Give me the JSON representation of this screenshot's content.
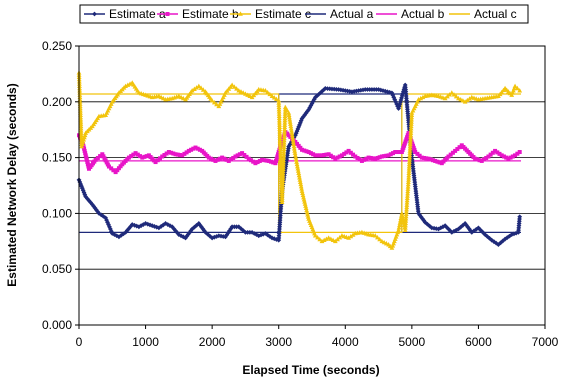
{
  "chart_data": {
    "type": "line",
    "xlabel": "Elapsed Time (seconds)",
    "ylabel": "Estimated Network Delay (seconds)",
    "xlim": [
      0,
      7000
    ],
    "ylim": [
      0,
      0.25
    ],
    "x_ticks": [
      "0",
      "1000",
      "2000",
      "3000",
      "4000",
      "5000",
      "6000",
      "7000"
    ],
    "y_ticks": [
      "0.000",
      "0.050",
      "0.100",
      "0.150",
      "0.200",
      "0.250"
    ],
    "grid": "horizontal",
    "legend_position": "top",
    "series": [
      {
        "name": "Estimate a",
        "kind": "estimate",
        "color": "#1f2a7a",
        "marker": "diamond",
        "points": [
          [
            0,
            0.13
          ],
          [
            100,
            0.115
          ],
          [
            200,
            0.108
          ],
          [
            300,
            0.1
          ],
          [
            400,
            0.096
          ],
          [
            500,
            0.082
          ],
          [
            600,
            0.079
          ],
          [
            700,
            0.083
          ],
          [
            800,
            0.09
          ],
          [
            900,
            0.088
          ],
          [
            1000,
            0.091
          ],
          [
            1100,
            0.089
          ],
          [
            1200,
            0.087
          ],
          [
            1300,
            0.091
          ],
          [
            1400,
            0.088
          ],
          [
            1500,
            0.081
          ],
          [
            1600,
            0.078
          ],
          [
            1700,
            0.086
          ],
          [
            1800,
            0.091
          ],
          [
            1900,
            0.083
          ],
          [
            2000,
            0.078
          ],
          [
            2100,
            0.08
          ],
          [
            2200,
            0.079
          ],
          [
            2300,
            0.088
          ],
          [
            2400,
            0.088
          ],
          [
            2500,
            0.083
          ],
          [
            2600,
            0.083
          ],
          [
            2700,
            0.08
          ],
          [
            2800,
            0.082
          ],
          [
            2900,
            0.078
          ],
          [
            3000,
            0.076
          ],
          [
            3050,
            0.12
          ],
          [
            3150,
            0.16
          ],
          [
            3250,
            0.17
          ],
          [
            3350,
            0.185
          ],
          [
            3450,
            0.193
          ],
          [
            3550,
            0.204
          ],
          [
            3700,
            0.212
          ],
          [
            3900,
            0.211
          ],
          [
            4100,
            0.209
          ],
          [
            4300,
            0.211
          ],
          [
            4500,
            0.211
          ],
          [
            4700,
            0.208
          ],
          [
            4800,
            0.194
          ],
          [
            4900,
            0.215
          ],
          [
            5000,
            0.15
          ],
          [
            5100,
            0.1
          ],
          [
            5200,
            0.092
          ],
          [
            5300,
            0.087
          ],
          [
            5400,
            0.086
          ],
          [
            5500,
            0.089
          ],
          [
            5600,
            0.083
          ],
          [
            5700,
            0.086
          ],
          [
            5800,
            0.091
          ],
          [
            5900,
            0.083
          ],
          [
            6000,
            0.087
          ],
          [
            6100,
            0.081
          ],
          [
            6200,
            0.076
          ],
          [
            6300,
            0.072
          ],
          [
            6400,
            0.077
          ],
          [
            6500,
            0.081
          ],
          [
            6600,
            0.083
          ],
          [
            6620,
            0.097
          ]
        ]
      },
      {
        "name": "Estimate b",
        "kind": "estimate",
        "color": "#e815c8",
        "marker": "square",
        "points": [
          [
            0,
            0.17
          ],
          [
            60,
            0.162
          ],
          [
            150,
            0.14
          ],
          [
            250,
            0.148
          ],
          [
            350,
            0.153
          ],
          [
            450,
            0.142
          ],
          [
            550,
            0.137
          ],
          [
            650,
            0.144
          ],
          [
            750,
            0.15
          ],
          [
            850,
            0.154
          ],
          [
            950,
            0.15
          ],
          [
            1050,
            0.152
          ],
          [
            1150,
            0.146
          ],
          [
            1250,
            0.151
          ],
          [
            1350,
            0.155
          ],
          [
            1450,
            0.153
          ],
          [
            1550,
            0.152
          ],
          [
            1650,
            0.156
          ],
          [
            1750,
            0.159
          ],
          [
            1850,
            0.156
          ],
          [
            1950,
            0.15
          ],
          [
            2050,
            0.147
          ],
          [
            2150,
            0.15
          ],
          [
            2250,
            0.147
          ],
          [
            2350,
            0.151
          ],
          [
            2450,
            0.154
          ],
          [
            2550,
            0.149
          ],
          [
            2650,
            0.145
          ],
          [
            2750,
            0.148
          ],
          [
            2850,
            0.147
          ],
          [
            2950,
            0.145
          ],
          [
            3050,
            0.165
          ],
          [
            3100,
            0.173
          ],
          [
            3150,
            0.17
          ],
          [
            3250,
            0.164
          ],
          [
            3350,
            0.157
          ],
          [
            3450,
            0.155
          ],
          [
            3550,
            0.152
          ],
          [
            3650,
            0.152
          ],
          [
            3750,
            0.153
          ],
          [
            3850,
            0.149
          ],
          [
            3950,
            0.152
          ],
          [
            4050,
            0.156
          ],
          [
            4150,
            0.151
          ],
          [
            4250,
            0.147
          ],
          [
            4350,
            0.15
          ],
          [
            4450,
            0.149
          ],
          [
            4550,
            0.151
          ],
          [
            4650,
            0.152
          ],
          [
            4750,
            0.155
          ],
          [
            4850,
            0.155
          ],
          [
            4950,
            0.172
          ],
          [
            5050,
            0.155
          ],
          [
            5150,
            0.15
          ],
          [
            5250,
            0.149
          ],
          [
            5350,
            0.147
          ],
          [
            5450,
            0.145
          ],
          [
            5550,
            0.151
          ],
          [
            5650,
            0.156
          ],
          [
            5750,
            0.161
          ],
          [
            5850,
            0.155
          ],
          [
            5950,
            0.149
          ],
          [
            6050,
            0.147
          ],
          [
            6150,
            0.151
          ],
          [
            6250,
            0.156
          ],
          [
            6350,
            0.152
          ],
          [
            6450,
            0.149
          ],
          [
            6550,
            0.152
          ],
          [
            6620,
            0.155
          ]
        ]
      },
      {
        "name": "Estimate c",
        "kind": "estimate",
        "color": "#f2c40c",
        "marker": "triangle",
        "points": [
          [
            0,
            0.226
          ],
          [
            40,
            0.16
          ],
          [
            100,
            0.172
          ],
          [
            200,
            0.178
          ],
          [
            300,
            0.187
          ],
          [
            400,
            0.188
          ],
          [
            500,
            0.2
          ],
          [
            600,
            0.208
          ],
          [
            700,
            0.214
          ],
          [
            800,
            0.217
          ],
          [
            900,
            0.208
          ],
          [
            1000,
            0.206
          ],
          [
            1100,
            0.204
          ],
          [
            1200,
            0.205
          ],
          [
            1300,
            0.202
          ],
          [
            1400,
            0.203
          ],
          [
            1500,
            0.205
          ],
          [
            1600,
            0.202
          ],
          [
            1700,
            0.21
          ],
          [
            1800,
            0.214
          ],
          [
            1900,
            0.209
          ],
          [
            2000,
            0.201
          ],
          [
            2100,
            0.196
          ],
          [
            2200,
            0.208
          ],
          [
            2300,
            0.215
          ],
          [
            2400,
            0.21
          ],
          [
            2500,
            0.207
          ],
          [
            2600,
            0.204
          ],
          [
            2700,
            0.211
          ],
          [
            2800,
            0.21
          ],
          [
            2900,
            0.205
          ],
          [
            3000,
            0.201
          ],
          [
            3050,
            0.11
          ],
          [
            3100,
            0.195
          ],
          [
            3150,
            0.19
          ],
          [
            3250,
            0.152
          ],
          [
            3350,
            0.12
          ],
          [
            3450,
            0.095
          ],
          [
            3550,
            0.08
          ],
          [
            3650,
            0.075
          ],
          [
            3750,
            0.078
          ],
          [
            3850,
            0.075
          ],
          [
            3950,
            0.08
          ],
          [
            4050,
            0.078
          ],
          [
            4150,
            0.082
          ],
          [
            4250,
            0.083
          ],
          [
            4350,
            0.081
          ],
          [
            4450,
            0.08
          ],
          [
            4550,
            0.075
          ],
          [
            4650,
            0.072
          ],
          [
            4700,
            0.069
          ],
          [
            4800,
            0.085
          ],
          [
            4850,
            0.1
          ],
          [
            4900,
            0.085
          ],
          [
            4950,
            0.13
          ],
          [
            5000,
            0.19
          ],
          [
            5100,
            0.202
          ],
          [
            5200,
            0.205
          ],
          [
            5300,
            0.206
          ],
          [
            5400,
            0.205
          ],
          [
            5500,
            0.203
          ],
          [
            5600,
            0.208
          ],
          [
            5700,
            0.203
          ],
          [
            5800,
            0.2
          ],
          [
            5900,
            0.204
          ],
          [
            6000,
            0.202
          ],
          [
            6100,
            0.203
          ],
          [
            6200,
            0.204
          ],
          [
            6300,
            0.205
          ],
          [
            6400,
            0.212
          ],
          [
            6500,
            0.206
          ],
          [
            6550,
            0.214
          ],
          [
            6620,
            0.21
          ]
        ]
      },
      {
        "name": "Actual a",
        "kind": "actual",
        "color": "#1f2a7a",
        "points": [
          [
            0,
            0.083
          ],
          [
            3000,
            0.083
          ],
          [
            3000,
            0.207
          ],
          [
            4850,
            0.207
          ],
          [
            4850,
            0.083
          ],
          [
            6640,
            0.083
          ]
        ]
      },
      {
        "name": "Actual b",
        "kind": "actual",
        "color": "#e815c8",
        "points": [
          [
            0,
            0.147
          ],
          [
            6640,
            0.147
          ]
        ]
      },
      {
        "name": "Actual c",
        "kind": "actual",
        "color": "#f2c40c",
        "points": [
          [
            0,
            0.207
          ],
          [
            3000,
            0.207
          ],
          [
            3000,
            0.083
          ],
          [
            4850,
            0.083
          ],
          [
            4850,
            0.207
          ],
          [
            6640,
            0.207
          ]
        ]
      }
    ]
  }
}
